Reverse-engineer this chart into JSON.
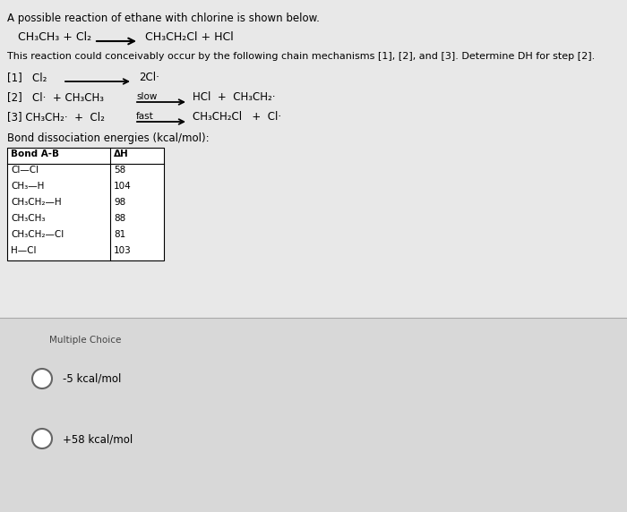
{
  "bg_color": "#e8e8e8",
  "white_bg": "#ffffff",
  "panel_bg": "#d8d8d8",
  "title_line": "A possible reaction of ethane with chlorine is shown below.",
  "reaction_left": "CH₃CH₃ + Cl₂",
  "reaction_right": "CH₃CH₂Cl + HCl",
  "desc_line": "This reaction could conceivably occur by the following chain mechanisms [1], [2], and [3]. Determine DH for step [2].",
  "step1_left": "[1]   Cl₂",
  "step1_right": "2Cl·",
  "step2_left": "[2]   Cl·  + CH₃CH₃",
  "step2_label": "slow",
  "step2_right": "HCl  +  CH₃CH₂·",
  "step3_left": "[3] CH₃CH₂·  +  Cl₂",
  "step3_label": "fast",
  "step3_right": "CH₃CH₂Cl   +  Cl·",
  "bond_title": "Bond dissociation energies (kcal/mol):",
  "table_headers": [
    "Bond A-B",
    "ΔH"
  ],
  "table_data": [
    [
      "Cl—Cl",
      "58"
    ],
    [
      "CH₃—H",
      "104"
    ],
    [
      "CH₃CH₂—H",
      "98"
    ],
    [
      "CH₃CH₃",
      "88"
    ],
    [
      "CH₃CH₂—Cl",
      "81"
    ],
    [
      "H—Cl",
      "103"
    ]
  ],
  "mc_label": "Multiple Choice",
  "choice1": "-5 kcal/mol",
  "choice2": "+58 kcal/mol",
  "fs": 8.5,
  "fs_small": 7.5
}
